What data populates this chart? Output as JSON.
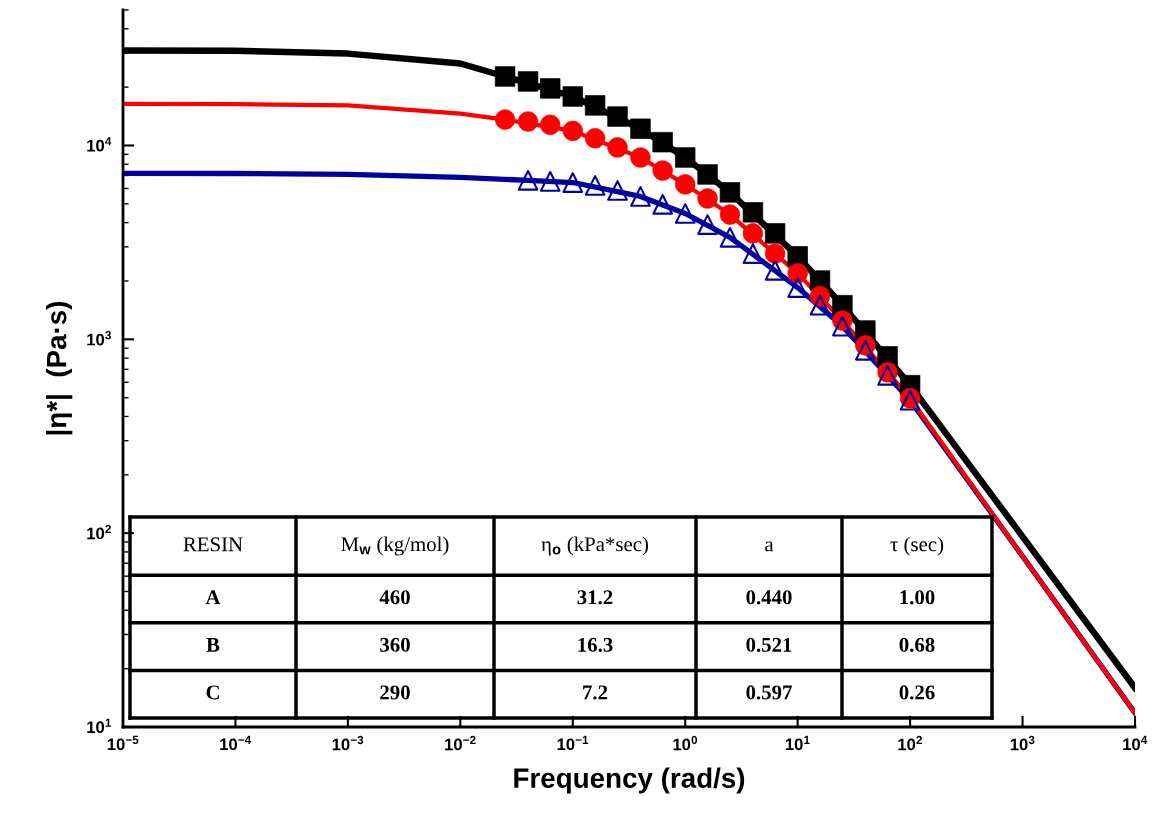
{
  "chart_data": {
    "type": "line",
    "xlabel": "Frequency (rad/s)",
    "ylabel": "|η*|  (Pa·s)",
    "log": "xy",
    "grid": false,
    "legend": false,
    "xlim": [
      1e-05,
      10000
    ],
    "ylim": [
      10,
      50000
    ],
    "xticks": [
      {
        "value": 1e-05,
        "label": "10$^{−5}$"
      },
      {
        "value": 0.0001,
        "label": "10$^{−4}$"
      },
      {
        "value": 0.001,
        "label": "10$^{−3}$"
      },
      {
        "value": 0.01,
        "label": "10$^{−2}$"
      },
      {
        "value": 0.1,
        "label": "10$^{−1}$"
      },
      {
        "value": 1,
        "label": "10$^{0}$"
      },
      {
        "value": 10,
        "label": "10$^{1}$"
      },
      {
        "value": 100,
        "label": "10$^{2}$"
      },
      {
        "value": 1000,
        "label": "10$^{3}$"
      },
      {
        "value": 10000,
        "label": "10$^{4}$"
      }
    ],
    "yticks": [
      {
        "value": 10,
        "label": "10$^{1}$"
      },
      {
        "value": 100,
        "label": "10$^{2}$"
      },
      {
        "value": 1000,
        "label": "10$^{3}$"
      },
      {
        "value": 10000,
        "label": "10$^{4}$"
      }
    ],
    "series": [
      {
        "type": "line",
        "color": "#000000",
        "marker": "none",
        "x": [
          1e-05,
          0.0001,
          0.001,
          0.01,
          0.025,
          0.1,
          0.4,
          1,
          2.5,
          10,
          25,
          100,
          1000,
          10000
        ],
        "values": [
          30900,
          30800,
          29800,
          26500,
          22700,
          17900,
          12200,
          8670,
          5730,
          2680,
          1500,
          580,
          96,
          15.9
        ]
      },
      {
        "type": "line",
        "color": "#0000a0",
        "marker": "none",
        "x": [
          1e-05,
          0.0001,
          0.001,
          0.01,
          0.04,
          0.1,
          0.4,
          1,
          2.5,
          10,
          25,
          100,
          1000,
          10000
        ],
        "values": [
          7180,
          7170,
          7090,
          6840,
          6610,
          6440,
          5460,
          4460,
          3360,
          1850,
          1170,
          485,
          76,
          11.8
        ]
      },
      {
        "type": "line",
        "color": "#ff0000",
        "marker": "none",
        "x": [
          1e-05,
          0.0001,
          0.001,
          0.01,
          0.025,
          0.1,
          0.4,
          1,
          2.5,
          10,
          25,
          100,
          1000,
          10000
        ],
        "values": [
          16400,
          16350,
          16100,
          14600,
          13600,
          11900,
          8670,
          6300,
          4400,
          2190,
          1250,
          497,
          76,
          11.8
        ]
      },
      {
        "type": "scatter",
        "color": "#000000",
        "marker": "square",
        "x": [
          0.025,
          0.04,
          0.063,
          0.1,
          0.158,
          0.25,
          0.4,
          0.63,
          1,
          1.58,
          2.5,
          4,
          6.3,
          10,
          15.8,
          25,
          40,
          63,
          100
        ],
        "values": [
          22700,
          21400,
          19700,
          17900,
          16100,
          14100,
          12200,
          10400,
          8670,
          7090,
          5730,
          4520,
          3520,
          2680,
          2010,
          1500,
          1110,
          817,
          580
        ]
      },
      {
        "type": "scatter",
        "color": "#ff0000",
        "marker": "circle",
        "x": [
          0.025,
          0.04,
          0.063,
          0.1,
          0.158,
          0.25,
          0.4,
          0.63,
          1,
          1.58,
          2.5,
          4,
          6.3,
          10,
          15.8,
          25,
          40,
          63,
          100
        ],
        "values": [
          13600,
          13300,
          12800,
          11900,
          10900,
          9770,
          8670,
          7430,
          6300,
          5330,
          4400,
          3520,
          2770,
          2190,
          1670,
          1250,
          931,
          676,
          497
        ]
      },
      {
        "type": "scatter",
        "color": "#0000a0",
        "marker": "triangle",
        "x": [
          0.04,
          0.063,
          0.1,
          0.158,
          0.25,
          0.4,
          0.63,
          1,
          1.58,
          2.5,
          4,
          6.3,
          10,
          15.8,
          25,
          40,
          63,
          100
        ],
        "values": [
          6610,
          6530,
          6440,
          6220,
          5860,
          5460,
          4970,
          4460,
          3910,
          3360,
          2770,
          2270,
          1850,
          1500,
          1170,
          878,
          652,
          485
        ]
      }
    ],
    "annotations": [
      "RESIN",
      "M$_{w}$ (kg/mol)",
      "η$_{o}$ (kPa*sec)",
      "a",
      "τ (sec)",
      "A",
      "460",
      "31.2",
      "0.440",
      "1.00",
      "B",
      "360",
      "16.3",
      "0.521",
      "0.68",
      "C",
      "290",
      "7.2",
      "0.597",
      "0.26"
    ]
  }
}
